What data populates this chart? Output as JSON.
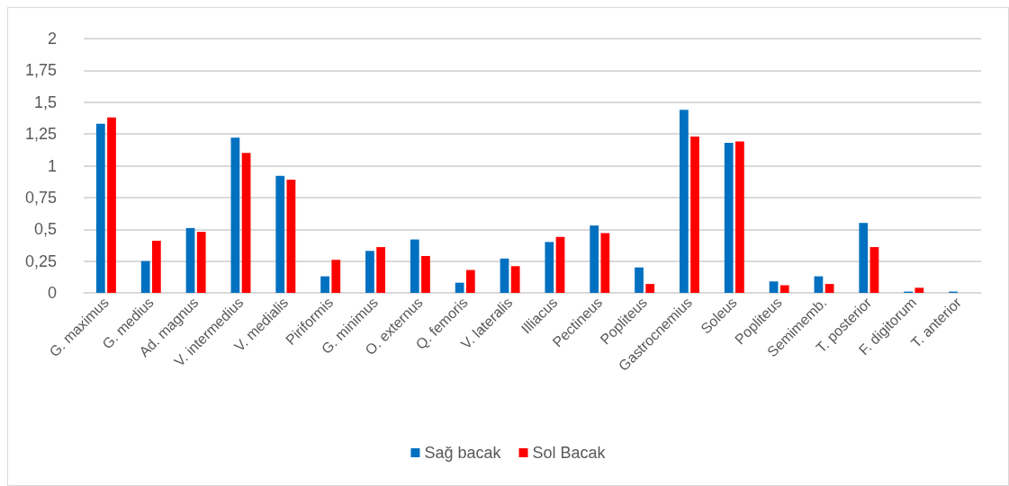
{
  "chart_data": {
    "type": "bar",
    "categories": [
      "G. maximus",
      "G. medius",
      "Ad. magnus",
      "V. intermedius",
      "V. medialis",
      "Piriformis",
      "G. minimus",
      "O. externus",
      "Q. femoris",
      "V. lateralis",
      "Illiacus",
      "Pectineus",
      "Popliteus",
      "Gastrocnemius",
      "Soleus",
      "Popliteus",
      "Semimemb.",
      "T. posterior",
      "F. digitorum",
      "T. anterior"
    ],
    "series": [
      {
        "name": "Sağ bacak",
        "color": "#0070c0",
        "values": [
          1.33,
          0.25,
          0.51,
          1.22,
          0.92,
          0.13,
          0.33,
          0.42,
          0.08,
          0.27,
          0.4,
          0.53,
          0.2,
          1.44,
          1.18,
          0.09,
          0.13,
          0.55,
          0.01,
          0.01
        ]
      },
      {
        "name": "Sol Bacak",
        "color": "#ff0000",
        "values": [
          1.38,
          0.41,
          0.48,
          1.1,
          0.89,
          0.26,
          0.36,
          0.29,
          0.18,
          0.21,
          0.44,
          0.47,
          0.07,
          1.23,
          1.19,
          0.06,
          0.07,
          0.36,
          0.04,
          null
        ]
      }
    ],
    "ylim": [
      0,
      2
    ],
    "yticks": [
      {
        "value": 0,
        "label": "0"
      },
      {
        "value": 0.25,
        "label": "0,25"
      },
      {
        "value": 0.5,
        "label": "0,5"
      },
      {
        "value": 0.75,
        "label": "0,75"
      },
      {
        "value": 1,
        "label": "1"
      },
      {
        "value": 1.25,
        "label": "1,25"
      },
      {
        "value": 1.5,
        "label": "1,5"
      },
      {
        "value": 1.75,
        "label": "1,75"
      },
      {
        "value": 2,
        "label": "2"
      }
    ],
    "grid": "y",
    "legend": "bottom"
  }
}
